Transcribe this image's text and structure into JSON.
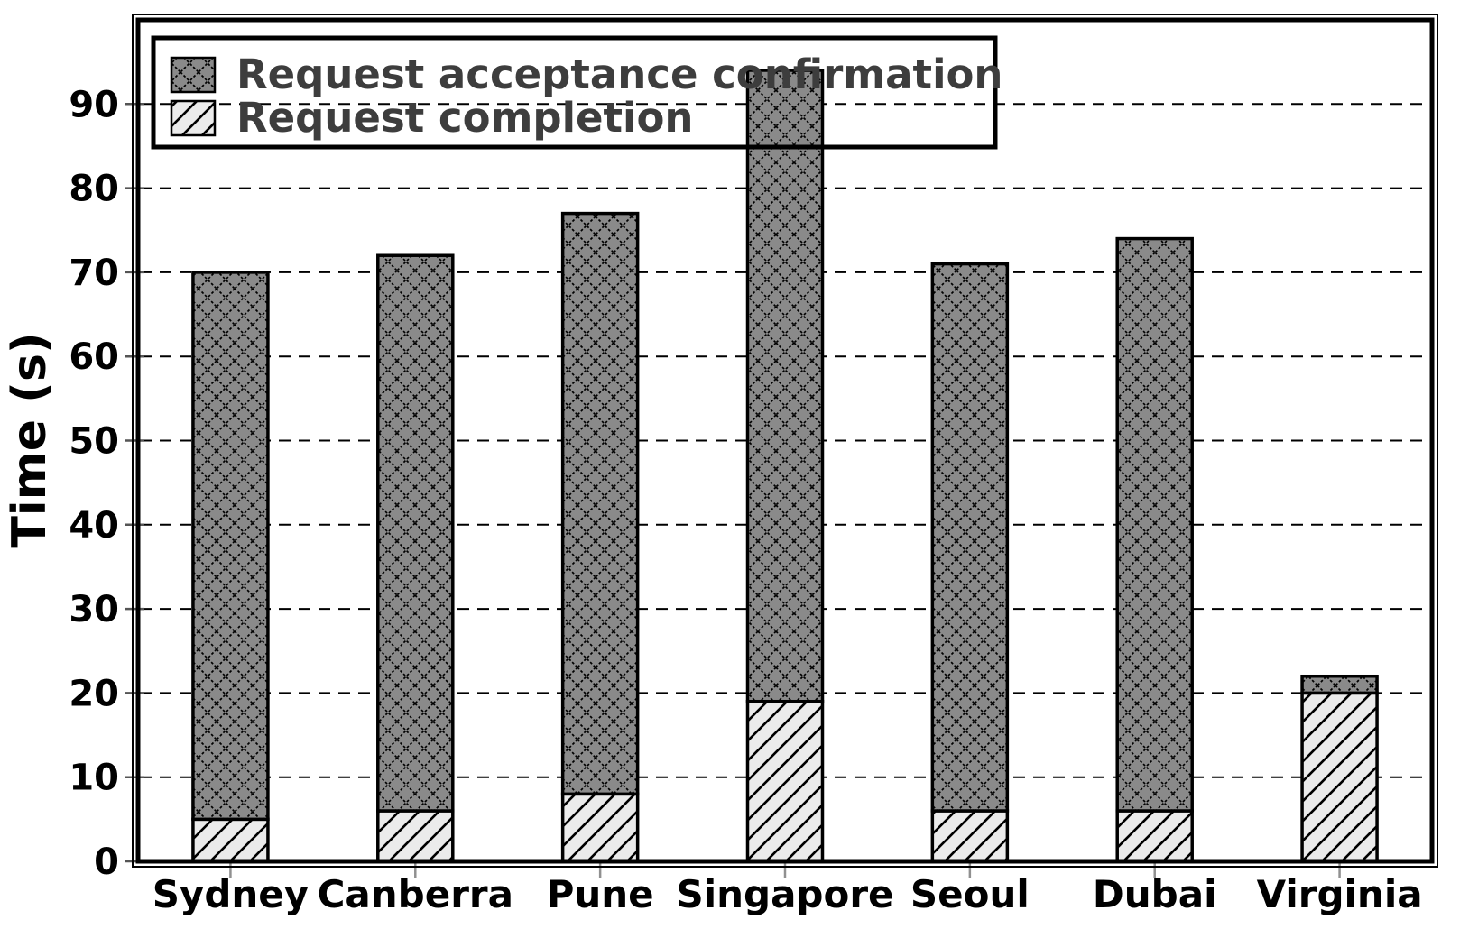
{
  "figure": {
    "background": "#ffffff",
    "description": "Stacked bar chart of request times per region"
  },
  "chart_data": {
    "type": "bar",
    "stacked": true,
    "title": "",
    "xlabel": "",
    "ylabel": "Time (s)",
    "categories": [
      "Sydney",
      "Canberra",
      "Pune",
      "Singapore",
      "Seoul",
      "Dubai",
      "Virginia"
    ],
    "series": [
      {
        "name": "Request completion",
        "values": [
          5,
          6,
          8,
          19,
          6,
          6,
          20
        ],
        "pattern": "diagonal-hatch",
        "fill": "#ebebeb",
        "hatch_color": "#000000"
      },
      {
        "name": "Request acceptance confirmation",
        "values": [
          65,
          66,
          69,
          75,
          65,
          68,
          2
        ],
        "pattern": "crosshatch",
        "fill": "#8a8a8a",
        "hatch_color": "#000000"
      }
    ],
    "stack_totals": [
      70,
      72,
      77,
      94,
      71,
      74,
      22
    ],
    "ylim": [
      0,
      100
    ],
    "yticks": [
      0,
      10,
      20,
      30,
      40,
      50,
      60,
      70,
      80,
      90
    ],
    "grid": {
      "horizontal": true,
      "style": "dashed",
      "color": "#000000"
    },
    "legend": {
      "position": "top-left",
      "entries": [
        "Request acceptance confirmation",
        "Request completion"
      ],
      "text_color": "#3d3d3d",
      "border_color": "#000000",
      "background": "transparent"
    },
    "axis_color": "#000000",
    "tick_label_color": "#000000",
    "x_tick_mark_color": "#909090",
    "y_tick_mark_color": "#555555"
  }
}
